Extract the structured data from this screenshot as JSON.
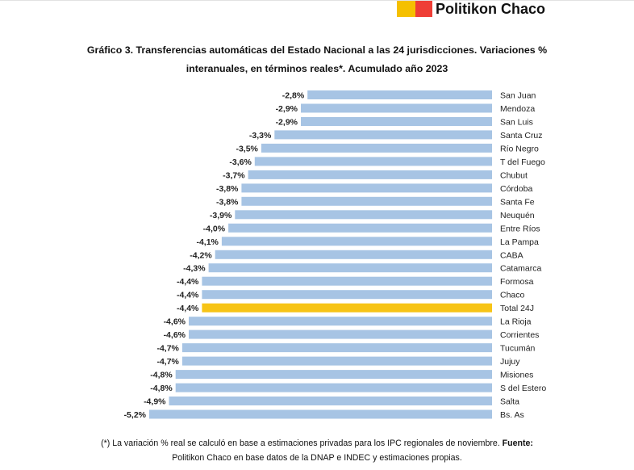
{
  "header": {
    "brand_name": "Politikon Chaco",
    "logo_colors": [
      "#f5c000",
      "#ef3e36"
    ]
  },
  "chart_data": {
    "type": "bar",
    "orientation": "horizontal",
    "title_line1": "Gráfico 3. Transferencias automáticas del Estado Nacional a las 24 jurisdicciones. Variaciones %",
    "title_line2": "interanuales, en términos reales*. Acumulado año 2023",
    "categories": [
      "San Juan",
      "Mendoza",
      "San Luis",
      "Santa Cruz",
      "Río Negro",
      "T del Fuego",
      "Chubut",
      "Córdoba",
      "Santa Fe",
      "Neuquén",
      "Entre Ríos",
      "La Pampa",
      "CABA",
      "Catamarca",
      "Formosa",
      "Chaco",
      "Total 24J",
      "La Rioja",
      "Corrientes",
      "Tucumán",
      "Jujuy",
      "Misiones",
      "S del Estero",
      "Salta",
      "Bs. As"
    ],
    "values": [
      -2.8,
      -2.9,
      -2.9,
      -3.3,
      -3.5,
      -3.6,
      -3.7,
      -3.8,
      -3.8,
      -3.9,
      -4.0,
      -4.1,
      -4.2,
      -4.3,
      -4.4,
      -4.4,
      -4.4,
      -4.6,
      -4.6,
      -4.7,
      -4.7,
      -4.8,
      -4.8,
      -4.9,
      -5.2
    ],
    "value_labels": [
      "-2,8%",
      "-2,9%",
      "-2,9%",
      "-3,3%",
      "-3,5%",
      "-3,6%",
      "-3,7%",
      "-3,8%",
      "-3,8%",
      "-3,9%",
      "-4,0%",
      "-4,1%",
      "-4,2%",
      "-4,3%",
      "-4,4%",
      "-4,4%",
      "-4,4%",
      "-4,6%",
      "-4,6%",
      "-4,7%",
      "-4,7%",
      "-4,8%",
      "-4,8%",
      "-4,9%",
      "-5,2%"
    ],
    "highlight": "Total 24J",
    "bar_color": "#a7c4e4",
    "highlight_color": "#f7c416",
    "xlim": [
      -5.2,
      0
    ],
    "grid": false,
    "legend": "none"
  },
  "footnote": {
    "line1_text": "(*) La variación % real se calculó en base a estimaciones privadas para los IPC regionales de noviembre. ",
    "line1_bold": "Fuente:",
    "line2": "Politikon Chaco en base datos de la DNAP e INDEC y estimaciones propias."
  }
}
